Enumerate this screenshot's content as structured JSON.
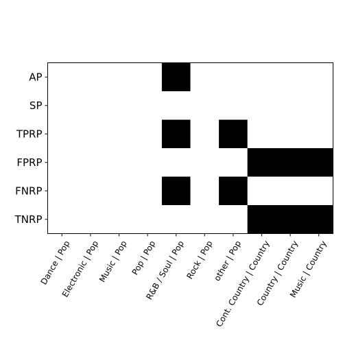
{
  "chart_data": {
    "type": "heatmap",
    "title": "",
    "xlabel": "",
    "ylabel": "",
    "x_labels": [
      "Dance | Pop",
      "Electronic | Pop",
      "Music | Pop",
      "Pop | Pop",
      "R&B / Soul | Pop",
      "Rock | Pop",
      "other | Pop",
      "Cont. Country | Country",
      "Country | Country",
      "Music | Country"
    ],
    "y_labels": [
      "AP",
      "SP",
      "TPRP",
      "FPRP",
      "FNRP",
      "TNRP"
    ],
    "values": [
      [
        0,
        0,
        0,
        0,
        1,
        0,
        0,
        0,
        0,
        0
      ],
      [
        0,
        0,
        0,
        0,
        0,
        0,
        0,
        0,
        0,
        0
      ],
      [
        0,
        0,
        0,
        0,
        1,
        0,
        1,
        0,
        0,
        0
      ],
      [
        0,
        0,
        0,
        0,
        0,
        0,
        0,
        1,
        1,
        1
      ],
      [
        0,
        0,
        0,
        0,
        1,
        0,
        1,
        0,
        0,
        0
      ],
      [
        0,
        0,
        0,
        0,
        0,
        0,
        0,
        1,
        1,
        1
      ]
    ],
    "colormap": {
      "0": "#ffffff",
      "1": "#000000"
    },
    "grid": false,
    "legend": "none"
  }
}
